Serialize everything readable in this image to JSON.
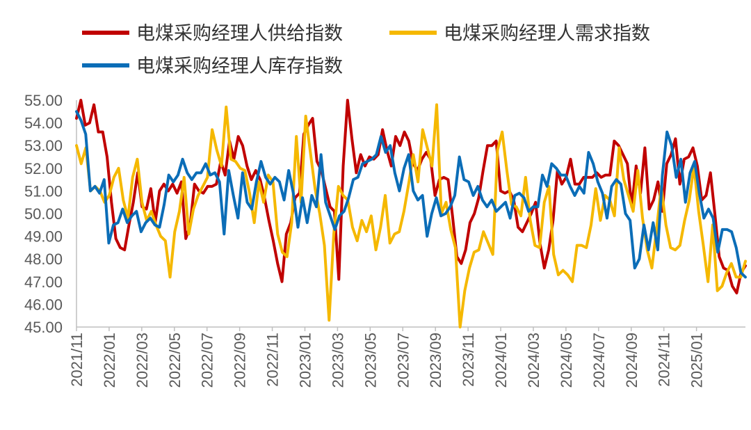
{
  "chart_data": {
    "type": "line",
    "title": "",
    "xlabel": "",
    "ylabel": "",
    "ylim": [
      45,
      55
    ],
    "y_ticks": [
      "45.00",
      "46.00",
      "47.00",
      "48.00",
      "49.00",
      "50.00",
      "51.00",
      "52.00",
      "53.00",
      "54.00",
      "55.00"
    ],
    "x_ticks": [
      "2021/11",
      "2022/01",
      "2022/03",
      "2022/05",
      "2022/07",
      "2022/09",
      "2022/11",
      "2023/01",
      "2023/03",
      "2023/05",
      "2023/07",
      "2023/09",
      "2023/11",
      "2024/01",
      "2024/03",
      "2024/05",
      "2024/07",
      "2024/09",
      "2024/11",
      "2025/01"
    ],
    "x_unit": "week (2021-11 to 2025-03)",
    "grid": false,
    "legend_position": "top",
    "series": [
      {
        "name": "电煤采购经理人供给指数",
        "color": "#C00000",
        "values": [
          54.2,
          55.0,
          53.9,
          54.0,
          54.8,
          53.6,
          53.6,
          52.5,
          50.5,
          48.9,
          48.5,
          48.4,
          49.5,
          50.5,
          51.8,
          50.3,
          50.2,
          51.1,
          49.6,
          51.0,
          51.3,
          51.0,
          51.3,
          50.9,
          51.4,
          48.9,
          49.5,
          51.3,
          51.0,
          50.9,
          51.2,
          51.2,
          51.3,
          52.3,
          51.7,
          53.2,
          52.4,
          53.4,
          53.0,
          52.1,
          51.5,
          51.9,
          51.5,
          50.7,
          49.7,
          48.8,
          47.8,
          47.0,
          49.1,
          49.6,
          50.7,
          50.9,
          53.5,
          53.9,
          54.2,
          52.3,
          51.9,
          51.1,
          50.3,
          50.1,
          47.1,
          52.1,
          55.0,
          53.3,
          51.8,
          52.6,
          52.1,
          52.5,
          52.4,
          52.6,
          53.7,
          52.8,
          52.1,
          53.4,
          53.0,
          53.6,
          53.2,
          52.2,
          51.9,
          52.4,
          52.7,
          52.4,
          50.8,
          51.5,
          51.6,
          51.5,
          49.9,
          48.1,
          47.8,
          48.4,
          49.6,
          50.0,
          50.7,
          51.9,
          53.0,
          53.0,
          53.2,
          51.0,
          50.9,
          51.0,
          50.6,
          49.4,
          49.2,
          49.6,
          50.0,
          50.5,
          48.7,
          47.6,
          48.4,
          49.7,
          51.9,
          51.3,
          51.6,
          52.4,
          51.3,
          51.3,
          51.6,
          51.6,
          51.6,
          51.8,
          51.6,
          51.7,
          51.7,
          53.2,
          53.0,
          52.6,
          52.2,
          50.3,
          52.1,
          50.9,
          52.9,
          50.2,
          50.6,
          51.4,
          50.1,
          52.2,
          52.6,
          53.3,
          51.3,
          52.4,
          52.5,
          52.9,
          52.1,
          50.6,
          50.8,
          51.8,
          50.0,
          48.1,
          47.6,
          47.5,
          46.8,
          46.5,
          47.4,
          47.7
        ]
      },
      {
        "name": "电煤采购经理人需求指数",
        "color": "#F5B800",
        "values": [
          53.0,
          52.2,
          52.9,
          51.0,
          51.2,
          51.0,
          50.5,
          50.8,
          51.6,
          52.0,
          50.6,
          49.8,
          51.6,
          52.4,
          50.5,
          49.7,
          50.1,
          49.5,
          49.0,
          48.8,
          47.2,
          49.2,
          50.1,
          51.6,
          49.1,
          50.2,
          50.8,
          51.2,
          51.6,
          53.7,
          52.8,
          52.1,
          54.7,
          52.4,
          52.3,
          52.0,
          51.9,
          50.9,
          49.6,
          51.4,
          50.5,
          51.7,
          51.4,
          49.1,
          48.3,
          48.1,
          49.6,
          53.4,
          50.5,
          54.3,
          52.7,
          51.1,
          50.0,
          48.6,
          45.3,
          49.1,
          51.2,
          50.8,
          50.6,
          49.4,
          48.8,
          49.7,
          49.2,
          49.9,
          48.4,
          49.4,
          50.8,
          48.7,
          49.1,
          49.2,
          50.1,
          51.3,
          52.6,
          51.4,
          53.7,
          52.9,
          52.1,
          54.8,
          50.0,
          50.5,
          49.3,
          48.5,
          45.0,
          46.6,
          47.6,
          48.3,
          48.4,
          49.2,
          48.7,
          48.2,
          52.8,
          53.6,
          51.9,
          50.4,
          50.3,
          49.9,
          51.6,
          49.7,
          48.6,
          48.5,
          50.5,
          51.2,
          48.2,
          47.3,
          47.5,
          47.3,
          47.0,
          48.6,
          48.6,
          48.5,
          49.5,
          51.1,
          49.7,
          50.8,
          50.6,
          49.9,
          52.9,
          51.5,
          50.8,
          50.1,
          51.9,
          49.8,
          48.4,
          47.6,
          49.3,
          51.2,
          49.5,
          48.5,
          48.4,
          48.6,
          49.7,
          50.6,
          52.1,
          50.1,
          48.6,
          47.0,
          49.5,
          46.6,
          46.8,
          47.4,
          47.8,
          47.2,
          47.2,
          47.9
        ]
      },
      {
        "name": "电煤采购经理人库存指数",
        "color": "#0B6DB7",
        "values": [
          54.5,
          54.1,
          53.5,
          51.0,
          51.2,
          50.9,
          51.5,
          48.7,
          49.5,
          49.6,
          50.2,
          49.6,
          49.9,
          50.1,
          49.2,
          49.6,
          49.8,
          49.5,
          49.4,
          50.4,
          51.7,
          51.4,
          51.7,
          52.4,
          51.8,
          51.5,
          51.8,
          51.8,
          52.2,
          51.7,
          51.8,
          51.4,
          49.1,
          51.9,
          50.8,
          49.8,
          51.8,
          50.5,
          50.2,
          51.4,
          52.3,
          51.6,
          51.3,
          51.6,
          51.4,
          50.6,
          51.9,
          50.9,
          49.4,
          50.7,
          49.6,
          50.8,
          50.3,
          52.6,
          50.5,
          49.9,
          49.3,
          49.9,
          50.1,
          50.7,
          51.5,
          51.6,
          52.2,
          52.3,
          52.4,
          52.6,
          53.4,
          52.7,
          53.0,
          51.8,
          51.0,
          52.0,
          52.6,
          51.0,
          50.6,
          50.8,
          49.0,
          50.0,
          50.7,
          49.9,
          50.0,
          50.3,
          50.8,
          52.5,
          51.5,
          51.4,
          50.8,
          51.2,
          50.6,
          50.3,
          50.6,
          50.1,
          50.3,
          50.5,
          49.8,
          50.8,
          50.9,
          50.7,
          50.1,
          50.3,
          50.3,
          51.7,
          51.2,
          52.2,
          52.0,
          51.7,
          51.7,
          51.2,
          50.8,
          51.2,
          50.9,
          52.7,
          52.2,
          51.4,
          50.9,
          49.8,
          51.2,
          51.5,
          51.3,
          50.0,
          49.7,
          47.6,
          48.0,
          49.5,
          48.4,
          49.6,
          48.4,
          51.7,
          53.6,
          53.0,
          51.6,
          52.4,
          50.5,
          51.8,
          52.3,
          50.9,
          49.8,
          50.2,
          49.8,
          48.3,
          49.3,
          49.3,
          49.2,
          48.5,
          47.4,
          47.2
        ]
      }
    ]
  }
}
